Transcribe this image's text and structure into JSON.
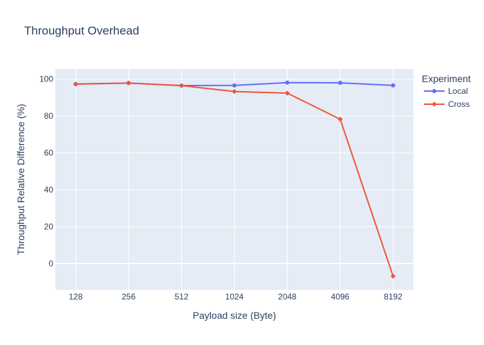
{
  "chart_data": {
    "type": "line",
    "title": "Throughput Overhead",
    "xlabel": "Payload size (Byte)",
    "ylabel": "Throughput Relative Difference (%)",
    "categories": [
      "128",
      "256",
      "512",
      "1024",
      "2048",
      "4096",
      "8192"
    ],
    "ylim": [
      -14.2,
      105.5
    ],
    "yticks": [
      0,
      20,
      40,
      60,
      80,
      100
    ],
    "grid": true,
    "legend": {
      "title": "Experiment",
      "placement": "right"
    },
    "series": [
      {
        "name": "Local",
        "color": "#636efa",
        "marker": "circle",
        "values": [
          97.3,
          97.9,
          96.5,
          96.6,
          98.1,
          98.0,
          96.6
        ]
      },
      {
        "name": "Cross",
        "color": "#ef553b",
        "marker": "diamond",
        "values": [
          97.3,
          97.9,
          96.5,
          93.3,
          92.4,
          78.3,
          -6.8
        ]
      }
    ]
  }
}
